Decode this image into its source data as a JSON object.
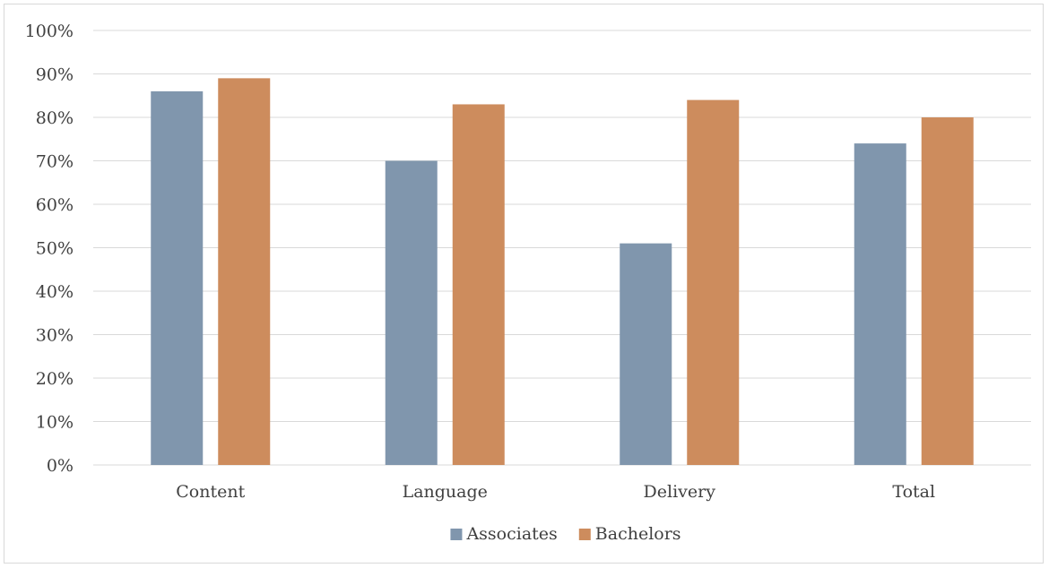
{
  "chart_data": {
    "type": "bar",
    "title": "",
    "xlabel": "",
    "ylabel": "",
    "categories": [
      "Content",
      "Language",
      "Delivery",
      "Total"
    ],
    "series": [
      {
        "name": "Associates",
        "values": [
          86,
          70,
          51,
          74
        ],
        "color": "#8096ad"
      },
      {
        "name": "Bachelors",
        "values": [
          89,
          83,
          84,
          80
        ],
        "color": "#cd8c5d"
      }
    ],
    "ylim": [
      0,
      100
    ],
    "yticks": [
      0,
      10,
      20,
      30,
      40,
      50,
      60,
      70,
      80,
      90,
      100
    ],
    "ytick_labels": [
      "0%",
      "10%",
      "20%",
      "30%",
      "40%",
      "50%",
      "60%",
      "70%",
      "80%",
      "90%",
      "100%"
    ],
    "grid": true,
    "gridline_color": "#d9d9d9",
    "legend_position": "bottom-center"
  }
}
